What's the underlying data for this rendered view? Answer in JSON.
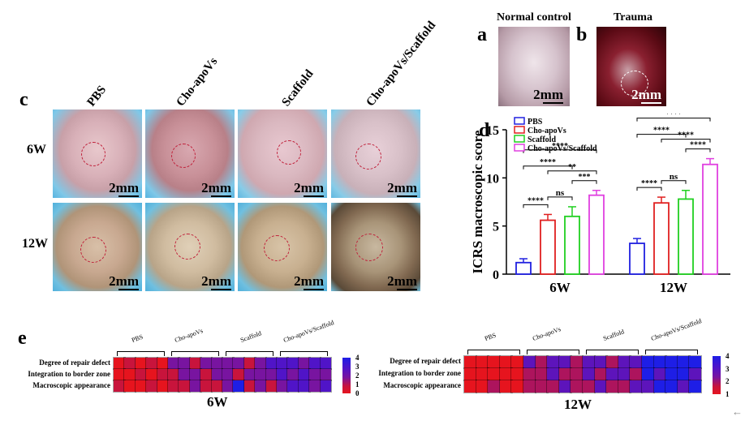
{
  "panels": {
    "a": {
      "letter": "a",
      "title": "Normal control",
      "scale": "2mm"
    },
    "b": {
      "letter": "b",
      "title": "Trauma",
      "scale": "2mm"
    },
    "c": {
      "letter": "c",
      "columns": [
        "PBS",
        "Cho-apoVs",
        "Scaffold",
        "Cho-apoVs/Scaffold"
      ],
      "rows": [
        "6W",
        "12W"
      ],
      "scale": "2mm"
    },
    "d": {
      "letter": "d"
    },
    "e": {
      "letter": "e"
    }
  },
  "chart_data": {
    "type": "bar",
    "categories": [
      "6W",
      "12W"
    ],
    "ylabel": "ICRS macroscopic score",
    "ylim": [
      0,
      15
    ],
    "yticks": [
      0,
      5,
      10,
      15
    ],
    "legend_position": "top-left",
    "series": [
      {
        "name": "PBS",
        "color": "#2020e0",
        "values": [
          1.2,
          3.2
        ],
        "errors": [
          0.4,
          0.5
        ]
      },
      {
        "name": "Cho-apoVs",
        "color": "#e02020",
        "values": [
          5.6,
          7.4
        ],
        "errors": [
          0.6,
          0.6
        ]
      },
      {
        "name": "Scaffold",
        "color": "#20d020",
        "values": [
          6.0,
          7.8
        ],
        "errors": [
          1.0,
          0.9
        ]
      },
      {
        "name": "Cho-apoVs/Scaffold",
        "color": "#e040e0",
        "values": [
          8.2,
          11.4
        ],
        "errors": [
          0.5,
          0.6
        ]
      }
    ],
    "significance": [
      {
        "group": 0,
        "from": 0,
        "to": 1,
        "label": "****"
      },
      {
        "group": 0,
        "from": 1,
        "to": 2,
        "label": "ns"
      },
      {
        "group": 0,
        "from": 2,
        "to": 3,
        "label": "***"
      },
      {
        "group": 0,
        "from": 0,
        "to": 2,
        "label": "****"
      },
      {
        "group": 0,
        "from": 0,
        "to": 3,
        "label": "****"
      },
      {
        "group": 0,
        "from": 1,
        "to": 3,
        "label": "**"
      },
      {
        "group": 1,
        "from": 0,
        "to": 1,
        "label": "****"
      },
      {
        "group": 1,
        "from": 1,
        "to": 2,
        "label": "ns"
      },
      {
        "group": 1,
        "from": 2,
        "to": 3,
        "label": "****"
      },
      {
        "group": 1,
        "from": 0,
        "to": 2,
        "label": "****"
      },
      {
        "group": 1,
        "from": 0,
        "to": 3,
        "label": "****"
      },
      {
        "group": 1,
        "from": 1,
        "to": 3,
        "label": "****"
      }
    ]
  },
  "heatmaps": [
    {
      "title": "6W",
      "rows": [
        "Degree of repair defect",
        "Integration to border zone",
        "Macroscopic appearance"
      ],
      "groups": [
        "PBS",
        "Cho-apoVs",
        "Scaffold",
        "Cho-apoVs/Scaffold"
      ],
      "colorbar": {
        "ticks": [
          "4",
          "3",
          "2",
          "1",
          "0"
        ],
        "max": 4
      },
      "values": [
        [
          0,
          1,
          0,
          1,
          0,
          2,
          2,
          1,
          2,
          2,
          2,
          2,
          1,
          2,
          3,
          3,
          3,
          2,
          3,
          3
        ],
        [
          0,
          0,
          1,
          0,
          1,
          1,
          2,
          2,
          1,
          2,
          2,
          1,
          2,
          2,
          2,
          3,
          2,
          3,
          2,
          2
        ],
        [
          1,
          0,
          0,
          1,
          0,
          1,
          1,
          2,
          1,
          1,
          2,
          4,
          1,
          2,
          1,
          2,
          3,
          3,
          2,
          3
        ]
      ]
    },
    {
      "title": "12W",
      "rows": [
        "Degree of repair defect",
        "Integration to border zone",
        "Macroscopic appearance"
      ],
      "groups": [
        "PBS",
        "Cho-apoVs",
        "Scaffold",
        "Cho-apoVs/Scaffold"
      ],
      "colorbar": {
        "ticks": [
          "4",
          "3",
          "2",
          "1"
        ],
        "max": 4,
        "min": 1
      },
      "values": [
        [
          1,
          1,
          1,
          1,
          1,
          3,
          2,
          3,
          3,
          2,
          3,
          3,
          2,
          3,
          3,
          4,
          4,
          4,
          4,
          4
        ],
        [
          1,
          1,
          1,
          1,
          1,
          2,
          2,
          3,
          2,
          2,
          3,
          2,
          3,
          3,
          2,
          4,
          3,
          4,
          4,
          3
        ],
        [
          1,
          1,
          2,
          1,
          1,
          2,
          2,
          2,
          3,
          2,
          2,
          3,
          2,
          2,
          3,
          3,
          4,
          4,
          3,
          4
        ]
      ]
    }
  ]
}
